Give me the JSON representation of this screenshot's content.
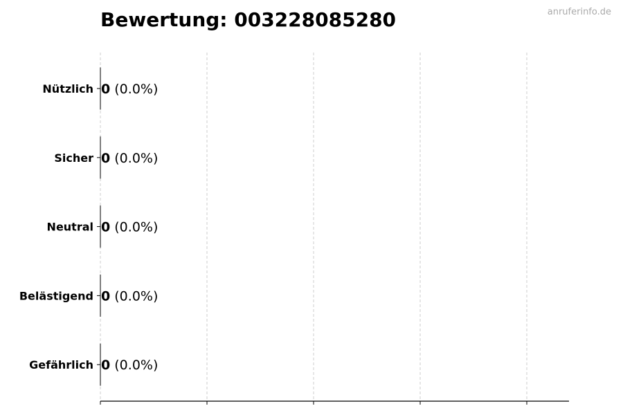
{
  "chart_data": {
    "type": "bar",
    "orientation": "horizontal",
    "title": "Bewertung: 003228085280",
    "categories": [
      "Nützlich",
      "Sicher",
      "Neutral",
      "Belästigend",
      "Gefährlich"
    ],
    "values": [
      0,
      0,
      0,
      0,
      0
    ],
    "percent_labels": [
      "(0.0%)",
      "(0.0%)",
      "(0.0%)",
      "(0.0%)",
      "(0.0%)"
    ],
    "xlabel": "",
    "ylabel": "",
    "x_tick_labels": [],
    "grid": "x dashed",
    "bar_color": "#000000"
  },
  "watermark": "anruferinfo.de"
}
